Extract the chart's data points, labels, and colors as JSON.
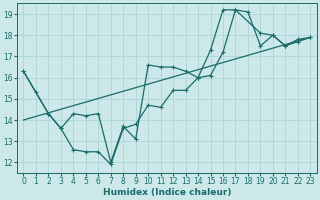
{
  "xlabel": "Humidex (Indice chaleur)",
  "ylabel": "",
  "bg_color": "#cce8e8",
  "line_color": "#1a6b6b",
  "grid_color": "#b0d8d8",
  "xlim": [
    -0.5,
    23.5
  ],
  "ylim": [
    11.5,
    19.5
  ],
  "yticks": [
    12,
    13,
    14,
    15,
    16,
    17,
    18,
    19
  ],
  "xticks": [
    0,
    1,
    2,
    3,
    4,
    5,
    6,
    7,
    8,
    9,
    10,
    11,
    12,
    13,
    14,
    15,
    16,
    17,
    18,
    19,
    20,
    21,
    22,
    23
  ],
  "line1_x": [
    0,
    1,
    2,
    3,
    4,
    5,
    6,
    7,
    8,
    9,
    10,
    11,
    12,
    13,
    14,
    15,
    16,
    17,
    18,
    19,
    20,
    21,
    22,
    23
  ],
  "line1_y": [
    16.3,
    15.3,
    14.3,
    13.6,
    12.6,
    12.5,
    12.5,
    11.9,
    13.6,
    13.8,
    14.7,
    14.6,
    15.4,
    15.4,
    16.0,
    17.3,
    19.2,
    19.2,
    19.1,
    17.5,
    18.0,
    17.5,
    17.7,
    17.9
  ],
  "line2_x": [
    0,
    2,
    3,
    4,
    5,
    6,
    7,
    8,
    9,
    10,
    11,
    12,
    13,
    14,
    15,
    16,
    17,
    19,
    20,
    21,
    22,
    23
  ],
  "line2_y": [
    16.3,
    14.3,
    13.6,
    14.3,
    14.2,
    14.3,
    12.0,
    13.7,
    13.1,
    16.6,
    16.5,
    16.5,
    16.3,
    16.0,
    16.1,
    17.2,
    19.2,
    18.1,
    18.0,
    17.5,
    17.8,
    17.9
  ],
  "line3_x": [
    0,
    23
  ],
  "line3_y": [
    14.0,
    17.9
  ]
}
